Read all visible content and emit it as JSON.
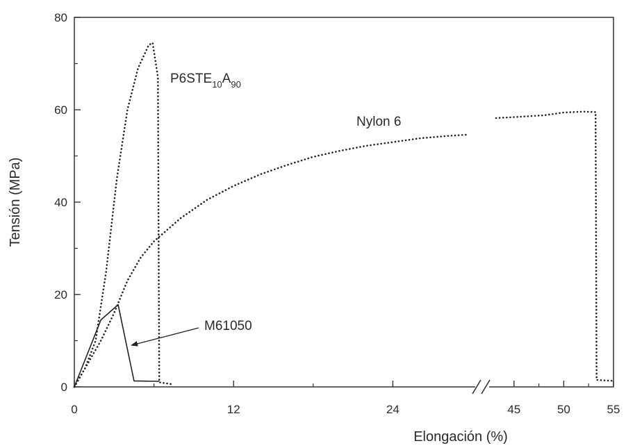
{
  "chart_data": {
    "type": "line",
    "title": "",
    "xlabel": "Elongación (%)",
    "ylabel": "Tensión (MPa)",
    "xticks": [
      "0",
      "12",
      "24",
      "45",
      "50",
      "55"
    ],
    "yticks": [
      "0",
      "20",
      "40",
      "60",
      "80"
    ],
    "ylim": [
      0,
      80
    ],
    "x_segments": [
      {
        "range": [
          0,
          30
        ]
      },
      {
        "range": [
          42.5,
          55
        ]
      }
    ],
    "axis_break_after": 30,
    "grid": false,
    "series": [
      {
        "name": "P6STE10A90",
        "style": "dotted",
        "points": [
          [
            0,
            0
          ],
          [
            0.8,
            4
          ],
          [
            1.6,
            10
          ],
          [
            2.4,
            25
          ],
          [
            3.2,
            45
          ],
          [
            4,
            60
          ],
          [
            4.8,
            69
          ],
          [
            5.6,
            74
          ],
          [
            5.9,
            74.5
          ],
          [
            6.3,
            67
          ],
          [
            6.4,
            1
          ],
          [
            7.3,
            0.6
          ]
        ]
      },
      {
        "name": "Nylon 6",
        "style": "dotted",
        "points": [
          [
            0,
            0
          ],
          [
            1,
            5
          ],
          [
            2,
            10
          ],
          [
            3,
            16
          ],
          [
            4,
            23
          ],
          [
            5,
            28
          ],
          [
            6,
            31.5
          ],
          [
            8,
            36.5
          ],
          [
            10,
            40.5
          ],
          [
            12,
            43.5
          ],
          [
            14,
            46
          ],
          [
            16,
            48
          ],
          [
            18,
            49.8
          ],
          [
            20,
            51.1
          ],
          [
            22,
            52.2
          ],
          [
            24,
            53
          ],
          [
            26,
            53.8
          ],
          [
            28,
            54.3
          ],
          [
            29.6,
            54.6
          ],
          [
            43.2,
            58.2
          ],
          [
            45,
            58.4
          ],
          [
            48,
            58.8
          ],
          [
            50,
            59.4
          ],
          [
            52,
            59.6
          ],
          [
            53.2,
            59.5
          ],
          [
            53.3,
            1.5
          ],
          [
            55,
            1.3
          ]
        ]
      },
      {
        "name": "M61050",
        "style": "solid",
        "points": [
          [
            0,
            0
          ],
          [
            2,
            14.5
          ],
          [
            3.3,
            17.8
          ],
          [
            4.5,
            1.3
          ],
          [
            6.4,
            1.2
          ]
        ]
      }
    ],
    "annotations": {
      "p6ste": {
        "base": "P6STE",
        "sub1": "10",
        "mid": "A",
        "sub2": "90"
      },
      "nylon": {
        "text": "Nylon 6"
      },
      "m61050": {
        "text": "M61050",
        "arrow_tip": [
          4.3,
          9
        ]
      }
    }
  }
}
